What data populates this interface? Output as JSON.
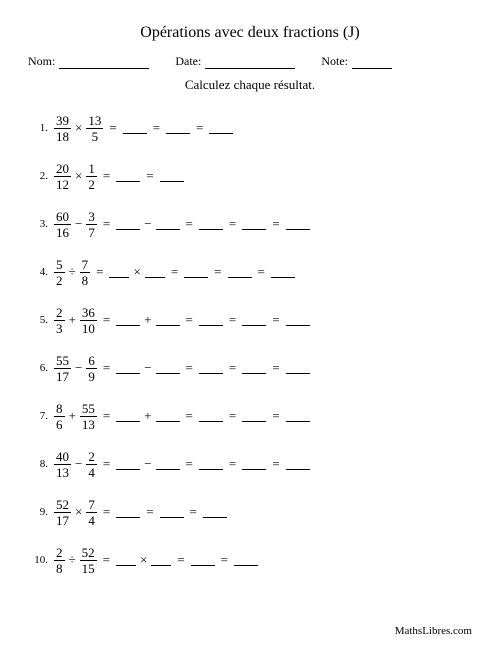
{
  "title": "Opérations avec deux fractions (J)",
  "header": {
    "name_label": "Nom:",
    "date_label": "Date:",
    "note_label": "Note:",
    "underline_name_w": 90,
    "underline_date_w": 90,
    "underline_note_w": 40
  },
  "subtitle": "Calculez chaque résultat.",
  "footer": "MathsLibres.com",
  "eq": "=",
  "problems": [
    {
      "n": "1.",
      "a_n": "39",
      "a_d": "18",
      "op": "×",
      "b_n": "13",
      "b_d": "5",
      "steps": [
        {
          "t": "eq"
        },
        {
          "t": "bl",
          "w": 24
        },
        {
          "t": "eq"
        },
        {
          "t": "bl",
          "w": 24
        },
        {
          "t": "eq"
        },
        {
          "t": "bl",
          "w": 24
        }
      ]
    },
    {
      "n": "2.",
      "a_n": "20",
      "a_d": "12",
      "op": "×",
      "b_n": "1",
      "b_d": "2",
      "steps": [
        {
          "t": "eq"
        },
        {
          "t": "bl",
          "w": 24
        },
        {
          "t": "eq"
        },
        {
          "t": "bl",
          "w": 24
        }
      ]
    },
    {
      "n": "3.",
      "a_n": "60",
      "a_d": "16",
      "op": "−",
      "b_n": "3",
      "b_d": "7",
      "steps": [
        {
          "t": "eq"
        },
        {
          "t": "bl",
          "w": 24
        },
        {
          "t": "op",
          "v": "−"
        },
        {
          "t": "bl",
          "w": 24
        },
        {
          "t": "eq"
        },
        {
          "t": "bl",
          "w": 24
        },
        {
          "t": "eq"
        },
        {
          "t": "bl",
          "w": 24
        },
        {
          "t": "eq"
        },
        {
          "t": "bl",
          "w": 24
        }
      ]
    },
    {
      "n": "4.",
      "a_n": "5",
      "a_d": "2",
      "op": "÷",
      "b_n": "7",
      "b_d": "8",
      "steps": [
        {
          "t": "eq"
        },
        {
          "t": "bl",
          "w": 20
        },
        {
          "t": "op",
          "v": "×"
        },
        {
          "t": "bl",
          "w": 20
        },
        {
          "t": "eq"
        },
        {
          "t": "bl",
          "w": 24
        },
        {
          "t": "eq"
        },
        {
          "t": "bl",
          "w": 24
        },
        {
          "t": "eq"
        },
        {
          "t": "bl",
          "w": 24
        }
      ]
    },
    {
      "n": "5.",
      "a_n": "2",
      "a_d": "3",
      "op": "+",
      "b_n": "36",
      "b_d": "10",
      "steps": [
        {
          "t": "eq"
        },
        {
          "t": "bl",
          "w": 24
        },
        {
          "t": "op",
          "v": "+"
        },
        {
          "t": "bl",
          "w": 24
        },
        {
          "t": "eq"
        },
        {
          "t": "bl",
          "w": 24
        },
        {
          "t": "eq"
        },
        {
          "t": "bl",
          "w": 24
        },
        {
          "t": "eq"
        },
        {
          "t": "bl",
          "w": 24
        }
      ]
    },
    {
      "n": "6.",
      "a_n": "55",
      "a_d": "17",
      "op": "−",
      "b_n": "6",
      "b_d": "9",
      "steps": [
        {
          "t": "eq"
        },
        {
          "t": "bl",
          "w": 24
        },
        {
          "t": "op",
          "v": "−"
        },
        {
          "t": "bl",
          "w": 24
        },
        {
          "t": "eq"
        },
        {
          "t": "bl",
          "w": 24
        },
        {
          "t": "eq"
        },
        {
          "t": "bl",
          "w": 24
        },
        {
          "t": "eq"
        },
        {
          "t": "bl",
          "w": 24
        }
      ]
    },
    {
      "n": "7.",
      "a_n": "8",
      "a_d": "6",
      "op": "+",
      "b_n": "55",
      "b_d": "13",
      "steps": [
        {
          "t": "eq"
        },
        {
          "t": "bl",
          "w": 24
        },
        {
          "t": "op",
          "v": "+"
        },
        {
          "t": "bl",
          "w": 24
        },
        {
          "t": "eq"
        },
        {
          "t": "bl",
          "w": 24
        },
        {
          "t": "eq"
        },
        {
          "t": "bl",
          "w": 24
        },
        {
          "t": "eq"
        },
        {
          "t": "bl",
          "w": 24
        }
      ]
    },
    {
      "n": "8.",
      "a_n": "40",
      "a_d": "13",
      "op": "−",
      "b_n": "2",
      "b_d": "4",
      "steps": [
        {
          "t": "eq"
        },
        {
          "t": "bl",
          "w": 24
        },
        {
          "t": "op",
          "v": "−"
        },
        {
          "t": "bl",
          "w": 24
        },
        {
          "t": "eq"
        },
        {
          "t": "bl",
          "w": 24
        },
        {
          "t": "eq"
        },
        {
          "t": "bl",
          "w": 24
        },
        {
          "t": "eq"
        },
        {
          "t": "bl",
          "w": 24
        }
      ]
    },
    {
      "n": "9.",
      "a_n": "52",
      "a_d": "17",
      "op": "×",
      "b_n": "7",
      "b_d": "4",
      "steps": [
        {
          "t": "eq"
        },
        {
          "t": "bl",
          "w": 24
        },
        {
          "t": "eq"
        },
        {
          "t": "bl",
          "w": 24
        },
        {
          "t": "eq"
        },
        {
          "t": "bl",
          "w": 24
        }
      ]
    },
    {
      "n": "10.",
      "a_n": "2",
      "a_d": "8",
      "op": "÷",
      "b_n": "52",
      "b_d": "15",
      "steps": [
        {
          "t": "eq"
        },
        {
          "t": "bl",
          "w": 20
        },
        {
          "t": "op",
          "v": "×"
        },
        {
          "t": "bl",
          "w": 20
        },
        {
          "t": "eq"
        },
        {
          "t": "bl",
          "w": 24
        },
        {
          "t": "eq"
        },
        {
          "t": "bl",
          "w": 24
        }
      ]
    }
  ]
}
